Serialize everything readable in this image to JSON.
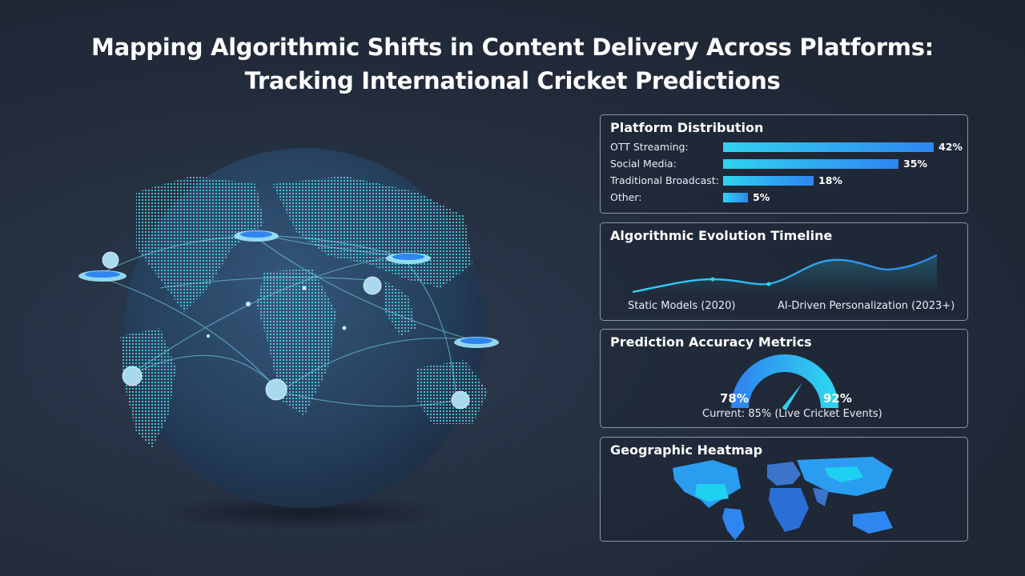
{
  "title_line1": "Mapping Algorithmic Shifts in Content Delivery Across Platforms:",
  "title_line2": "Tracking International Cricket Predictions",
  "colors": {
    "accent_cyan": "#2fd3f0",
    "accent_blue": "#2f86f0",
    "background": "#222b3a"
  },
  "platform_distribution": {
    "title": "Platform Distribution",
    "rows": [
      {
        "label": "OTT Streaming:",
        "value": 42,
        "value_label": "42%"
      },
      {
        "label": "Social Media:",
        "value": 35,
        "value_label": "35%"
      },
      {
        "label": "Traditional Broadcast:",
        "value": 18,
        "value_label": "18%"
      },
      {
        "label": "Other:",
        "value": 5,
        "value_label": "5%"
      }
    ]
  },
  "timeline": {
    "title": "Algorithmic Evolution Timeline",
    "start_label": "Static Models (2020)",
    "end_label": "AI-Driven Personalization (2023+)"
  },
  "accuracy": {
    "title": "Prediction Accuracy Metrics",
    "min_label": "78%",
    "max_label": "92%",
    "min": 78,
    "max": 92,
    "current": 85,
    "current_label": "Current: 85% (Live Cricket Events)"
  },
  "heatmap": {
    "title": "Geographic Heatmap"
  },
  "icons": [
    "globe-icon",
    "stadium-icon",
    "cricket-ball-icon",
    "world-map-icon",
    "gauge-icon"
  ]
}
